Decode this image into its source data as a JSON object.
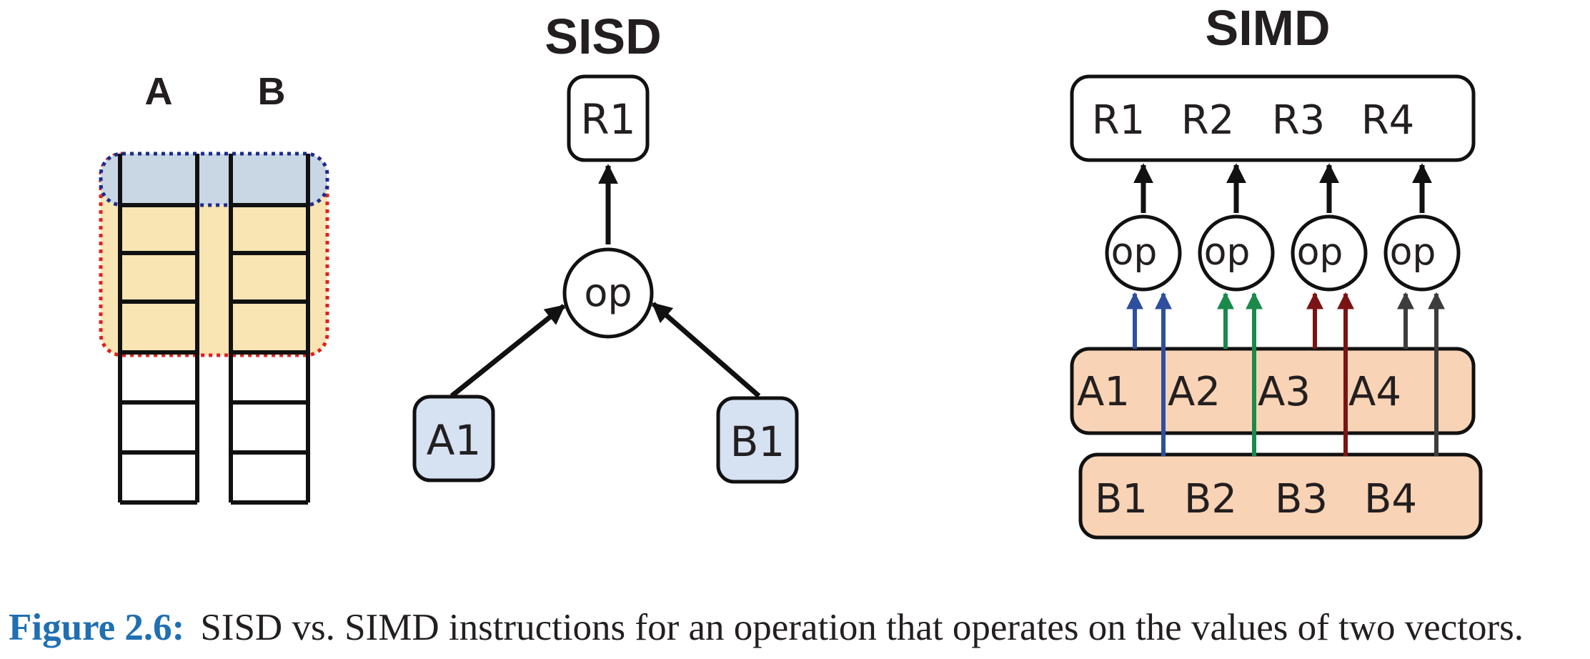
{
  "memory": {
    "label_a": "A",
    "label_b": "B"
  },
  "sisd": {
    "title": "SISD",
    "result": "R1",
    "op": "op",
    "input_a": "A1",
    "input_b": "B1"
  },
  "simd": {
    "title": "SIMD",
    "results": [
      "R1",
      "R2",
      "R3",
      "R4"
    ],
    "ops": [
      "op",
      "op",
      "op",
      "op"
    ],
    "a_values": [
      "A1",
      "A2",
      "A3",
      "A4"
    ],
    "b_values": [
      "B1",
      "B2",
      "B3",
      "B4"
    ],
    "lane_colors": [
      "#2e4f9e",
      "#1a8a4a",
      "#7a1414",
      "#3d3d3d"
    ]
  },
  "colors": {
    "stroke": "#111111",
    "input_fill": "#d6e1f2",
    "vector_fill": "#f9d3b5",
    "selection_fill": "#f9e4b4",
    "row_fill": "#c9d6e4",
    "selection_red": "#e02020",
    "selection_blue": "#1a2c8c",
    "caption_accent": "#1f6fb2"
  },
  "caption": {
    "label": "Figure 2.6:",
    "text": "SISD vs. SIMD instructions for an operation that operates on the values of two vectors."
  }
}
